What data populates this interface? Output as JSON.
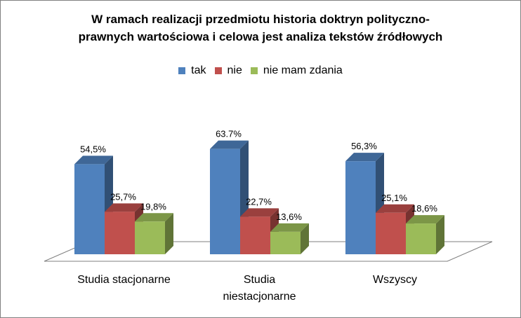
{
  "chart_data": {
    "type": "bar",
    "title": "W ramach realizacji przedmiotu historia doktryn polityczno-prawnych wartościowa i celowa jest analiza tekstów źródłowych",
    "title_lines": [
      "W ramach realizacji przedmiotu historia doktryn polityczno-",
      "prawnych wartościowa i celowa jest analiza tekstów źródłowych"
    ],
    "categories": [
      "Studia stacjonarne",
      "Studia niestacjonarne",
      "Wszyscy"
    ],
    "category_lines": [
      [
        "Studia stacjonarne"
      ],
      [
        "Studia",
        "niestacjonarne"
      ],
      [
        "Wszyscy"
      ]
    ],
    "series": [
      {
        "name": "tak",
        "color": "#4f81bd",
        "values": [
          54.5,
          63.7,
          56.3
        ],
        "labels": [
          "54,5%",
          "63.7%",
          "56,3%"
        ]
      },
      {
        "name": "nie",
        "color": "#c0504d",
        "values": [
          25.7,
          22.7,
          25.1
        ],
        "labels": [
          "25,7%",
          "22,7%",
          "25,1%"
        ]
      },
      {
        "name": "nie mam zdania",
        "color": "#9bbb59",
        "values": [
          19.8,
          13.6,
          18.6
        ],
        "labels": [
          "19,8%",
          "13,6%",
          "18,6%"
        ]
      }
    ],
    "unit": "%",
    "legend_position": "top",
    "grid": false,
    "style": "3d-clustered-column",
    "ylim": [
      0,
      70
    ]
  }
}
